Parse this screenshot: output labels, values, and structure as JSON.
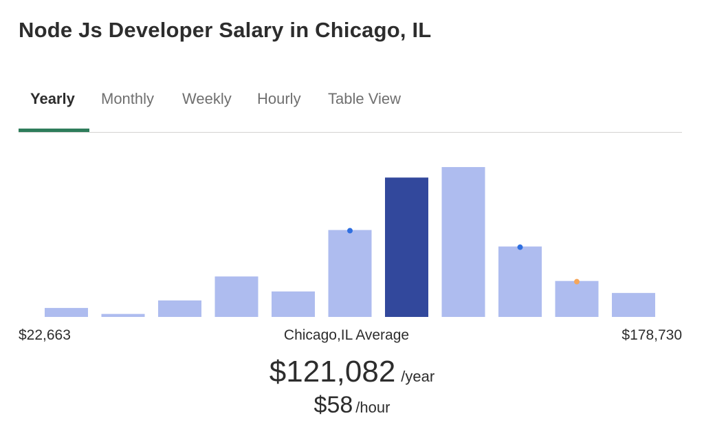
{
  "header": {
    "title": "Node Js Developer Salary in Chicago, IL"
  },
  "tabs": [
    {
      "label": "Yearly",
      "active": true
    },
    {
      "label": "Monthly",
      "active": false
    },
    {
      "label": "Weekly",
      "active": false
    },
    {
      "label": "Hourly",
      "active": false
    },
    {
      "label": "Table View",
      "active": false
    }
  ],
  "colors": {
    "bar": "#aebcef",
    "highlight_bar": "#32489c",
    "marker_blue": "#2f6fe0",
    "marker_orange": "#f5a65b",
    "tab_underline": "#2e7d5b"
  },
  "chart_data": {
    "type": "bar",
    "title": "",
    "xlabel": "Chicago,IL Average",
    "x_range": [
      "$22,663",
      "$178,730"
    ],
    "values": [
      6,
      2,
      11,
      27,
      17,
      58,
      93,
      100,
      47,
      24,
      16
    ],
    "highlight_index": 6,
    "markers": [
      {
        "bar_index": 5,
        "color": "blue"
      },
      {
        "bar_index": 8,
        "color": "blue"
      },
      {
        "bar_index": 9,
        "color": "orange"
      }
    ],
    "ylim": [
      0,
      100
    ]
  },
  "summary": {
    "yearly_amount": "$121,082",
    "yearly_unit": "/year",
    "hourly_amount": "$58",
    "hourly_unit": "/hour"
  }
}
